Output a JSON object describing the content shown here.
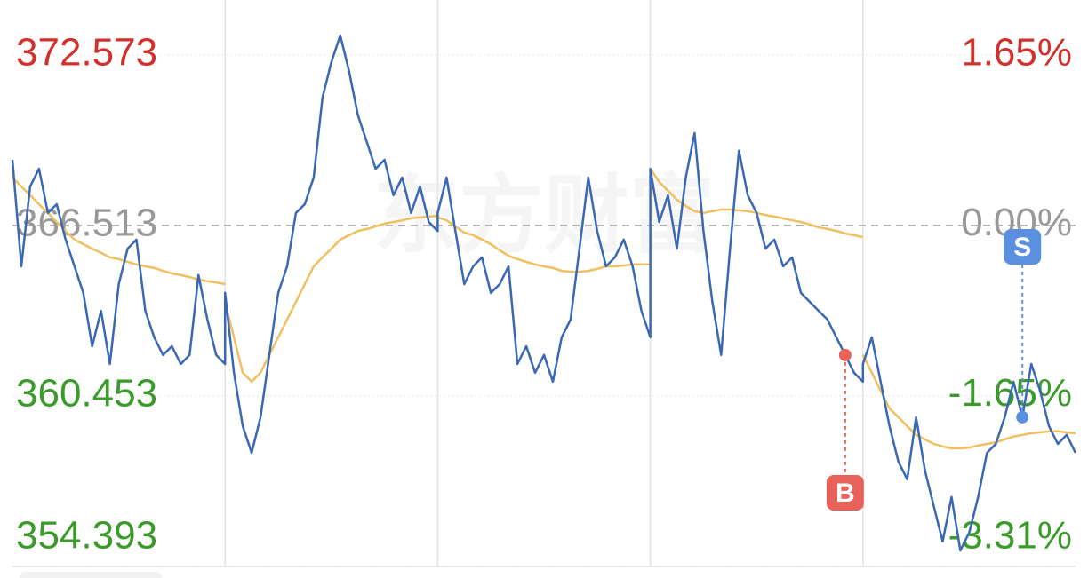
{
  "chart_data": {
    "type": "line",
    "watermark": "东方财富",
    "line_color": "#3a68b4",
    "average_color": "#f0c060",
    "buy_label": "B",
    "sell_label": "S",
    "ylim": [
      354.393,
      372.573
    ],
    "yticks": [
      354.393,
      360.453,
      366.513,
      372.573
    ],
    "y2lim": [
      -3.31,
      1.65
    ],
    "y2ticks": [
      {
        "value": -3.31,
        "label": "-3.31%"
      },
      {
        "value": -1.65,
        "label": "-1.65%"
      },
      {
        "value": 0,
        "label": "0.00%"
      },
      {
        "value": 1.65,
        "label": "1.65%"
      }
    ],
    "days": [
      {
        "values": [
          368.85,
          365.06,
          367.9,
          368.53,
          366.96,
          367.27,
          366.01,
          365.06,
          364.12,
          362.22,
          363.48,
          361.59,
          364.43,
          365.69,
          366.01,
          363.48,
          362.54,
          361.91,
          362.22,
          361.59,
          361.91,
          364.75,
          363.17,
          361.91,
          361.59
        ],
        "average": [
          368.22,
          367.9,
          367.59,
          367.27,
          366.96,
          366.64,
          366.32,
          366.01,
          365.85,
          365.69,
          365.54,
          365.38,
          365.32,
          365.22,
          365.13,
          365.06,
          365.0,
          364.9,
          364.81,
          364.75,
          364.68,
          364.59,
          364.53,
          364.49,
          364.43
        ]
      },
      {
        "values": [
          364.12,
          361.28,
          359.38,
          358.43,
          359.7,
          361.91,
          364.12,
          365.06,
          366.96,
          367.27,
          368.22,
          371.06,
          372.32,
          373.27,
          372.0,
          370.43,
          369.48,
          368.53,
          368.85,
          367.59,
          368.22,
          366.96,
          367.9,
          366.64,
          366.32
        ],
        "average": [
          363.8,
          362.54,
          361.28,
          360.96,
          361.28,
          361.91,
          362.54,
          363.17,
          363.8,
          364.43,
          365.06,
          365.38,
          365.69,
          366.01,
          366.17,
          366.32,
          366.39,
          366.48,
          366.58,
          366.64,
          366.7,
          366.77,
          366.8,
          366.83,
          366.86
        ]
      },
      {
        "values": [
          366.96,
          368.22,
          366.32,
          364.43,
          365.06,
          365.38,
          364.12,
          364.43,
          365.06,
          361.59,
          362.22,
          361.28,
          361.91,
          360.96,
          362.54,
          363.17,
          365.69,
          368.22,
          366.32,
          365.06,
          365.38,
          366.01,
          365.06,
          363.48,
          362.54
        ],
        "average": [
          366.8,
          366.7,
          366.48,
          366.26,
          366.17,
          366.01,
          365.85,
          365.63,
          365.44,
          365.32,
          365.22,
          365.13,
          365.06,
          365.0,
          364.9,
          364.87,
          364.87,
          364.9,
          364.97,
          365.06,
          365.06,
          365.09,
          365.13,
          365.13,
          365.13
        ]
      },
      {
        "values": [
          368.53,
          366.64,
          367.59,
          365.69,
          368.22,
          369.8,
          366.32,
          363.8,
          361.91,
          365.69,
          369.17,
          367.59,
          366.96,
          365.69,
          366.01,
          365.06,
          365.38,
          364.12,
          363.8,
          363.48,
          363.17,
          362.54,
          361.91,
          361.28,
          360.96
        ],
        "average": [
          368.53,
          368.06,
          367.75,
          367.43,
          367.21,
          367.02,
          366.96,
          367.02,
          367.08,
          367.08,
          367.05,
          367.02,
          366.96,
          366.89,
          366.83,
          366.77,
          366.7,
          366.64,
          366.55,
          366.45,
          366.39,
          366.32,
          366.23,
          366.17,
          366.1
        ]
      },
      {
        "values": [
          361.59,
          362.54,
          360.96,
          359.38,
          358.12,
          357.49,
          359.7,
          357.8,
          356.54,
          355.28,
          356.86,
          354.96,
          355.6,
          356.86,
          358.43,
          358.75,
          359.7,
          360.96,
          359.7,
          361.59,
          360.64,
          359.38,
          358.75,
          359.07,
          358.43
        ],
        "average": [
          361.91,
          361.28,
          360.64,
          360.01,
          359.7,
          359.38,
          359.07,
          358.91,
          358.75,
          358.66,
          358.59,
          358.59,
          358.62,
          358.69,
          358.75,
          358.81,
          358.91,
          359.01,
          359.07,
          359.13,
          359.16,
          359.2,
          359.2,
          359.16,
          359.13
        ]
      }
    ]
  }
}
